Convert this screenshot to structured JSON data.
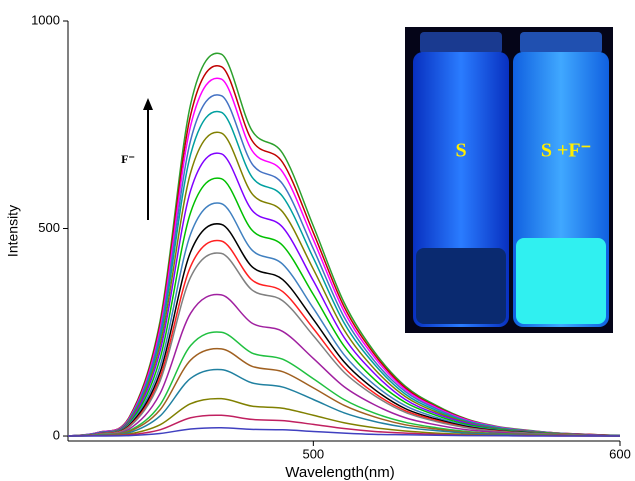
{
  "chart_data": {
    "type": "line",
    "x_label": "Wavelength(nm)",
    "y_label": "Intensity",
    "x": [
      420,
      430,
      440,
      450,
      460,
      470,
      480,
      490,
      500,
      510,
      520,
      530,
      540,
      550,
      560,
      570,
      580,
      590,
      600
    ],
    "xlim": [
      420,
      600
    ],
    "xticks": [
      500,
      600
    ],
    "ylim": [
      -12,
      1000
    ],
    "yticks": [
      0,
      500,
      1000
    ],
    "annotations": {
      "arrow_label": "F⁻",
      "vial_left": "S",
      "vial_right": "S +F⁻"
    },
    "series": [
      {
        "color": "#2ca02c",
        "values": [
          0,
          9,
          46,
          276,
          800,
          920,
          736,
          681,
          506,
          322,
          202,
          120,
          74,
          41,
          23,
          14,
          7,
          4,
          1
        ]
      },
      {
        "color": "#c00000",
        "values": [
          0,
          9,
          45,
          267,
          774,
          890,
          712,
          659,
          490,
          312,
          196,
          116,
          71,
          40,
          22,
          13,
          7,
          4,
          1
        ]
      },
      {
        "color": "#ff00ff",
        "values": [
          0,
          9,
          43,
          258,
          748,
          860,
          688,
          636,
          473,
          301,
          189,
          112,
          69,
          39,
          22,
          13,
          7,
          3,
          1
        ]
      },
      {
        "color": "#4472c4",
        "values": [
          0,
          8,
          41,
          246,
          713,
          820,
          656,
          607,
          451,
          287,
          180,
          107,
          66,
          37,
          21,
          12,
          7,
          3,
          1
        ]
      },
      {
        "color": "#00a0a0",
        "values": [
          0,
          8,
          39,
          234,
          679,
          780,
          624,
          577,
          429,
          273,
          172,
          101,
          62,
          35,
          20,
          12,
          6,
          3,
          1
        ]
      },
      {
        "color": "#808000",
        "values": [
          0,
          7,
          37,
          219,
          635,
          730,
          584,
          540,
          402,
          256,
          161,
          95,
          58,
          33,
          18,
          11,
          6,
          3,
          1
        ]
      },
      {
        "color": "#8000ff",
        "values": [
          0,
          7,
          34,
          204,
          592,
          680,
          544,
          503,
          374,
          238,
          150,
          88,
          54,
          31,
          17,
          10,
          5,
          3,
          1
        ]
      },
      {
        "color": "#00c000",
        "values": [
          0,
          6,
          31,
          186,
          539,
          620,
          496,
          459,
          341,
          217,
          136,
          81,
          50,
          28,
          16,
          9,
          5,
          2,
          1
        ]
      },
      {
        "color": "#4080c0",
        "values": [
          0,
          6,
          28,
          168,
          487,
          560,
          448,
          414,
          308,
          196,
          123,
          73,
          45,
          25,
          14,
          8,
          4,
          2,
          1
        ]
      },
      {
        "color": "#000000",
        "values": [
          0,
          5,
          26,
          153,
          444,
          510,
          408,
          377,
          281,
          179,
          112,
          66,
          41,
          23,
          13,
          8,
          4,
          2,
          1
        ]
      },
      {
        "color": "#ff2020",
        "values": [
          0,
          5,
          24,
          141,
          409,
          470,
          376,
          348,
          259,
          165,
          103,
          61,
          38,
          21,
          12,
          7,
          4,
          2,
          0
        ]
      },
      {
        "color": "#808080",
        "values": [
          0,
          4,
          22,
          132,
          383,
          440,
          352,
          326,
          242,
          154,
          97,
          57,
          35,
          20,
          11,
          7,
          4,
          2,
          0
        ]
      },
      {
        "color": "#a020a0",
        "values": [
          0,
          3,
          17,
          102,
          296,
          340,
          272,
          252,
          187,
          119,
          75,
          44,
          27,
          15,
          9,
          5,
          3,
          1,
          0
        ]
      },
      {
        "color": "#20c040",
        "values": [
          0,
          3,
          13,
          75,
          218,
          250,
          200,
          185,
          138,
          88,
          55,
          33,
          20,
          11,
          6,
          4,
          2,
          1,
          0
        ]
      },
      {
        "color": "#a06020",
        "values": [
          0,
          2,
          11,
          63,
          183,
          210,
          168,
          155,
          116,
          74,
          46,
          27,
          17,
          9,
          5,
          3,
          2,
          1,
          0
        ]
      },
      {
        "color": "#2080a0",
        "values": [
          0,
          2,
          8,
          48,
          139,
          160,
          128,
          118,
          88,
          56,
          35,
          21,
          13,
          7,
          4,
          2,
          1,
          1,
          0
        ]
      },
      {
        "color": "#808000",
        "values": [
          0,
          1,
          5,
          27,
          78,
          90,
          72,
          67,
          50,
          32,
          20,
          12,
          7,
          4,
          2,
          1,
          1,
          0,
          0
        ]
      },
      {
        "color": "#c02060",
        "values": [
          0,
          1,
          3,
          15,
          44,
          50,
          40,
          37,
          28,
          18,
          11,
          7,
          4,
          2,
          1,
          1,
          0,
          0,
          0
        ]
      },
      {
        "color": "#4040c0",
        "values": [
          0,
          0,
          1,
          6,
          17,
          20,
          16,
          15,
          11,
          7,
          4,
          3,
          2,
          1,
          1,
          0,
          0,
          0,
          0
        ]
      }
    ]
  }
}
